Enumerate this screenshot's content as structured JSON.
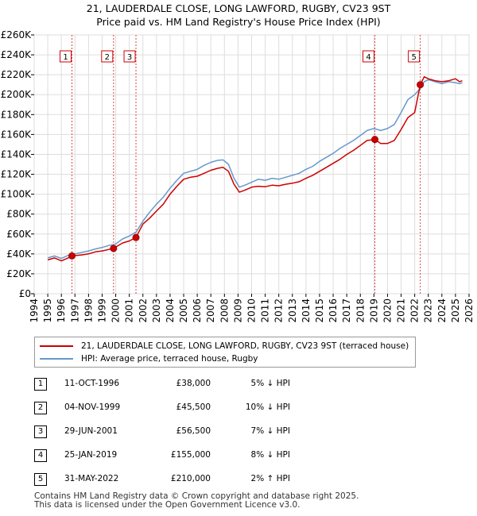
{
  "header": {
    "title_line1": "21, LAUDERDALE CLOSE, LONG LAWFORD, RUGBY, CV23 9ST",
    "title_line2": "Price paid vs. HM Land Registry's House Price Index (HPI)"
  },
  "chart_data": {
    "type": "line",
    "title": "21, LAUDERDALE CLOSE, LONG LAWFORD, RUGBY, CV23 9ST — Price paid vs. HM Land Registry's House Price Index (HPI)",
    "xlabel": "",
    "ylabel": "",
    "xlim": [
      1994,
      2026
    ],
    "ylim": [
      0,
      260000
    ],
    "x_ticks": [
      1994,
      1995,
      1996,
      1997,
      1998,
      1999,
      2000,
      2001,
      2002,
      2003,
      2004,
      2005,
      2006,
      2007,
      2008,
      2009,
      2010,
      2011,
      2012,
      2013,
      2014,
      2015,
      2016,
      2017,
      2018,
      2019,
      2020,
      2021,
      2022,
      2023,
      2024,
      2025,
      2026
    ],
    "y_ticks": [
      {
        "value": 0,
        "label": "£0"
      },
      {
        "value": 20000,
        "label": "£20K"
      },
      {
        "value": 40000,
        "label": "£40K"
      },
      {
        "value": 60000,
        "label": "£60K"
      },
      {
        "value": 80000,
        "label": "£80K"
      },
      {
        "value": 100000,
        "label": "£100K"
      },
      {
        "value": 120000,
        "label": "£120K"
      },
      {
        "value": 140000,
        "label": "£140K"
      },
      {
        "value": 160000,
        "label": "£160K"
      },
      {
        "value": 180000,
        "label": "£180K"
      },
      {
        "value": 200000,
        "label": "£200K"
      },
      {
        "value": 220000,
        "label": "£220K"
      },
      {
        "value": 240000,
        "label": "£240K"
      },
      {
        "value": 260000,
        "label": "£260K"
      }
    ],
    "grid": true,
    "series": [
      {
        "name": "21, LAUDERDALE CLOSE, LONG LAWFORD, RUGBY, CV23 9ST (terraced house)",
        "color": "#cc0000",
        "x": [
          1995.0,
          1995.5,
          1996.0,
          1996.5,
          1996.78,
          1997.5,
          1998.0,
          1998.5,
          1999.0,
          1999.5,
          1999.84,
          2000.5,
          2001.0,
          2001.49,
          2002.0,
          2002.5,
          2003.0,
          2003.5,
          2004.0,
          2004.5,
          2005.0,
          2005.5,
          2006.0,
          2006.5,
          2007.0,
          2007.5,
          2007.9,
          2008.3,
          2008.7,
          2009.1,
          2009.5,
          2010.0,
          2010.5,
          2011.0,
          2011.5,
          2012.0,
          2012.5,
          2013.0,
          2013.5,
          2014.0,
          2014.5,
          2015.0,
          2015.5,
          2016.0,
          2016.5,
          2017.0,
          2017.5,
          2018.0,
          2018.5,
          2019.07,
          2019.5,
          2020.0,
          2020.5,
          2021.0,
          2021.5,
          2022.0,
          2022.41,
          2022.7,
          2023.0,
          2023.5,
          2024.0,
          2024.5,
          2025.0,
          2025.3,
          2025.5
        ],
        "values": [
          34000,
          36000,
          33000,
          36000,
          38000,
          39000,
          40000,
          42000,
          43000,
          44500,
          45500,
          51000,
          53000,
          56500,
          70000,
          76000,
          83000,
          90000,
          100000,
          108000,
          115000,
          117000,
          118000,
          121000,
          124000,
          126000,
          127000,
          123000,
          110000,
          102000,
          104000,
          107000,
          108000,
          107500,
          109000,
          108500,
          110000,
          111000,
          112500,
          116000,
          119000,
          123000,
          127000,
          131000,
          135000,
          140000,
          144000,
          149000,
          154000,
          155000,
          151000,
          151000,
          154000,
          165000,
          177000,
          182000,
          210000,
          218000,
          216000,
          214000,
          213000,
          214000,
          216000,
          213000,
          214000
        ]
      },
      {
        "name": "HPI: Average price, terraced house, Rugby",
        "color": "#6699cc",
        "x": [
          1995.0,
          1995.5,
          1996.0,
          1996.5,
          1997.0,
          1997.5,
          1998.0,
          1998.5,
          1999.0,
          1999.5,
          2000.0,
          2000.5,
          2001.0,
          2001.5,
          2002.0,
          2002.5,
          2003.0,
          2003.5,
          2004.0,
          2004.5,
          2005.0,
          2005.5,
          2006.0,
          2006.5,
          2007.0,
          2007.5,
          2007.9,
          2008.3,
          2008.7,
          2009.1,
          2009.5,
          2010.0,
          2010.5,
          2011.0,
          2011.5,
          2012.0,
          2012.5,
          2013.0,
          2013.5,
          2014.0,
          2014.5,
          2015.0,
          2015.5,
          2016.0,
          2016.5,
          2017.0,
          2017.5,
          2018.0,
          2018.5,
          2019.0,
          2019.5,
          2020.0,
          2020.5,
          2021.0,
          2021.5,
          2022.0,
          2022.4,
          2022.7,
          2023.0,
          2023.5,
          2024.0,
          2024.5,
          2025.0,
          2025.3,
          2025.5
        ],
        "values": [
          36000,
          38000,
          35500,
          38500,
          40000,
          41500,
          43000,
          45000,
          46500,
          48500,
          50000,
          55000,
          58000,
          62000,
          73000,
          82000,
          90000,
          97000,
          106000,
          114000,
          121000,
          123000,
          125000,
          129000,
          132000,
          134000,
          134500,
          130000,
          116000,
          107000,
          109000,
          112000,
          115000,
          114000,
          116000,
          115000,
          117000,
          119000,
          121000,
          125000,
          128000,
          133000,
          137000,
          141000,
          146000,
          150000,
          154000,
          159000,
          164000,
          166000,
          164000,
          166000,
          170000,
          182000,
          195000,
          200000,
          206000,
          213000,
          215000,
          213000,
          211000,
          213000,
          212000,
          211000,
          212000
        ]
      }
    ],
    "markers": [
      {
        "label": "1",
        "x": 1996.78,
        "y": 38000
      },
      {
        "label": "2",
        "x": 1999.84,
        "y": 45500
      },
      {
        "label": "3",
        "x": 2001.49,
        "y": 56500
      },
      {
        "label": "4",
        "x": 2019.07,
        "y": 155000
      },
      {
        "label": "5",
        "x": 2022.41,
        "y": 210000
      }
    ],
    "legend_position": "bottom"
  },
  "legend": {
    "property_label": "21, LAUDERDALE CLOSE, LONG LAWFORD, RUGBY, CV23 9ST (terraced house)",
    "hpi_label": "HPI: Average price, terraced house, Rugby"
  },
  "transactions": [
    {
      "num": "1",
      "date": "11-OCT-1996",
      "price": "£38,000",
      "hpi": "5% ↓ HPI"
    },
    {
      "num": "2",
      "date": "04-NOV-1999",
      "price": "£45,500",
      "hpi": "10% ↓ HPI"
    },
    {
      "num": "3",
      "date": "29-JUN-2001",
      "price": "£56,500",
      "hpi": "7% ↓ HPI"
    },
    {
      "num": "4",
      "date": "25-JAN-2019",
      "price": "£155,000",
      "hpi": "8% ↓ HPI"
    },
    {
      "num": "5",
      "date": "31-MAY-2022",
      "price": "£210,000",
      "hpi": "2% ↑ HPI"
    }
  ],
  "footer": {
    "line1": "Contains HM Land Registry data © Crown copyright and database right 2025.",
    "line2": "This data is licensed under the Open Government Licence v3.0."
  }
}
